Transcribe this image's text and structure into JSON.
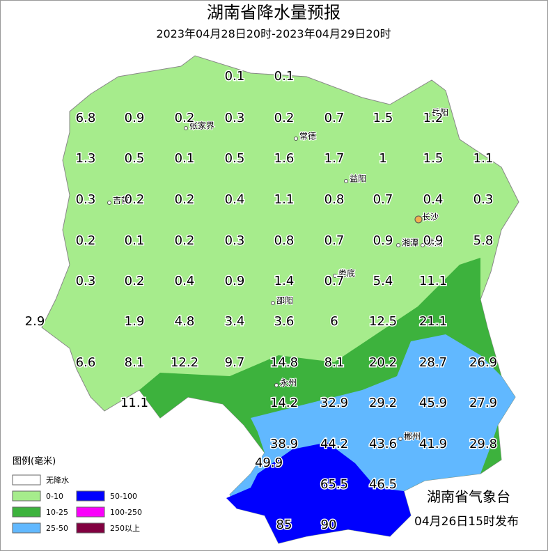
{
  "header": {
    "title": "湖南省降水量预报",
    "subtitle": "2023年04月28日20时-2023年04月29日20时"
  },
  "rows": [
    [
      "0.1",
      "0.1"
    ],
    [
      "6.8",
      "0.9",
      "0.2",
      "0.3",
      "0.2",
      "0.7",
      "1.5",
      "1.2"
    ],
    [
      "1.3",
      "0.5",
      "0.1",
      "0.5",
      "1.6",
      "1.7",
      "1",
      "1.5",
      "1.1"
    ],
    [
      "0.3",
      "0.2",
      "0.2",
      "0.4",
      "1.1",
      "0.8",
      "0.7",
      "0.4",
      "0.3"
    ],
    [
      "0.2",
      "0.1",
      "0.2",
      "0.3",
      "0.8",
      "0.7",
      "0.9",
      "0.9",
      "5.8"
    ],
    [
      "0.3",
      "0.2",
      "0.4",
      "0.9",
      "1.4",
      "0.7",
      "5.4",
      "11.1"
    ],
    [
      "2.9",
      "1.9",
      "4.8",
      "3.4",
      "3.6",
      "6",
      "12.5",
      "21.1"
    ],
    [
      "6.6",
      "8.1",
      "12.2",
      "9.7",
      "14.8",
      "8.1",
      "20.2",
      "28.7",
      "26.9"
    ],
    [
      "11.1",
      "14.2",
      "32.9",
      "29.2",
      "45.9",
      "27.9"
    ],
    [
      "38.9",
      "44.2",
      "43.6",
      "41.9",
      "29.8"
    ],
    [
      "49.9"
    ],
    [
      "65.5",
      "46.5"
    ],
    [
      "85",
      "90"
    ]
  ],
  "cities": [
    "张家界",
    "常德",
    "益阳",
    "长沙",
    "湘潭",
    "株洲",
    "娄底",
    "邵阳",
    "永州",
    "郴州",
    "吉首",
    "岳阳"
  ],
  "legend": {
    "title": "图例(毫米)",
    "items": [
      "无降水",
      "0-10",
      "10-25",
      "25-50",
      "50-100",
      "100-250",
      "250以上"
    ]
  },
  "footer": {
    "issuer": "湖南省气象台",
    "issued": "04月26日15时发布"
  }
}
